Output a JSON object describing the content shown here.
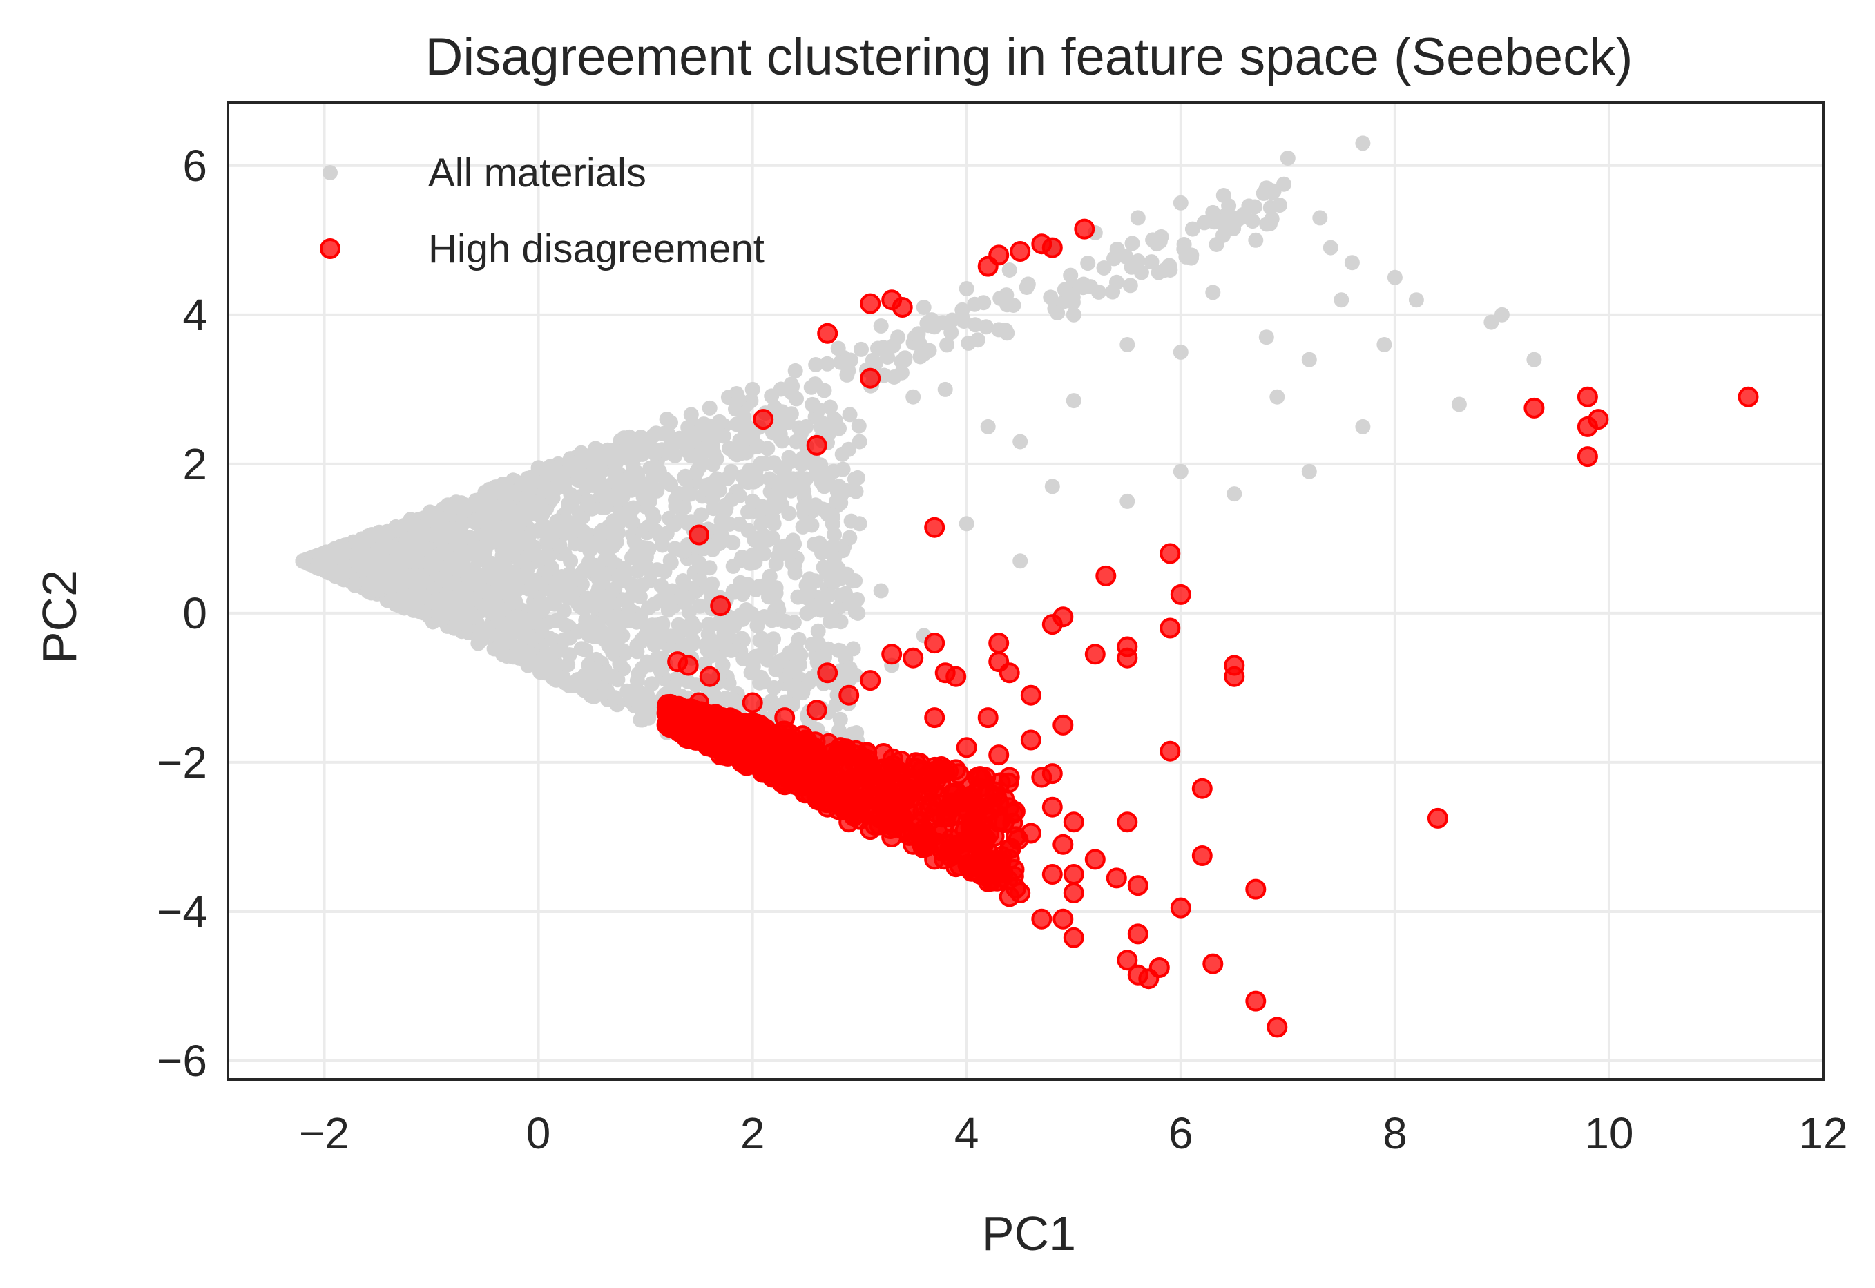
{
  "chart_data": {
    "type": "scatter",
    "title": "Disagreement clustering in feature space (Seebeck)",
    "xlabel": "PC1",
    "ylabel": "PC2",
    "xlim": [
      -2.9,
      12.0
    ],
    "ylim": [
      -6.25,
      6.85
    ],
    "xticks": [
      -2,
      0,
      2,
      4,
      6,
      8,
      10,
      12
    ],
    "xtick_labels": [
      "−2",
      "0",
      "2",
      "4",
      "6",
      "8",
      "10",
      "12"
    ],
    "yticks": [
      -6,
      -4,
      -2,
      0,
      2,
      4,
      6
    ],
    "ytick_labels": [
      "−6",
      "−4",
      "−2",
      "0",
      "2",
      "4",
      "6"
    ],
    "grid": true,
    "legend": "top-left",
    "series": [
      {
        "name": "All materials",
        "color": "#d3d3d3",
        "note": "dense wedge of points from apex (-2.2, 0.7) spreading right; upper edge rises to about (7, 5.8), lower edge descends to about (1.2, -1.6); sparse points scattered up to x about 9.3",
        "points": [
          [
            -2.2,
            0.7
          ],
          [
            -1.8,
            0.8
          ],
          [
            -1.5,
            0.85
          ],
          [
            -1.2,
            1.0
          ],
          [
            -0.9,
            1.2
          ],
          [
            -0.6,
            1.45
          ],
          [
            -0.3,
            1.7
          ],
          [
            0,
            1.95
          ],
          [
            0.4,
            2.15
          ],
          [
            0.8,
            2.35
          ],
          [
            1.2,
            2.6
          ],
          [
            1.6,
            2.75
          ],
          [
            2,
            3.0
          ],
          [
            2.4,
            3.25
          ],
          [
            2.8,
            3.55
          ],
          [
            3.2,
            3.85
          ],
          [
            3.6,
            4.1
          ],
          [
            4,
            4.35
          ],
          [
            4.4,
            4.6
          ],
          [
            4.8,
            4.9
          ],
          [
            5.2,
            5.1
          ],
          [
            5.6,
            5.3
          ],
          [
            6,
            5.5
          ],
          [
            6.4,
            5.6
          ],
          [
            6.8,
            5.7
          ],
          [
            7,
            6.1
          ],
          [
            7.7,
            6.3
          ],
          [
            -1.8,
            0.55
          ],
          [
            -1.4,
            0.35
          ],
          [
            -1.0,
            0.15
          ],
          [
            -0.6,
            -0.05
          ],
          [
            -0.2,
            -0.25
          ],
          [
            0.2,
            -0.5
          ],
          [
            0.6,
            -0.8
          ],
          [
            1.0,
            -1.2
          ],
          [
            1.2,
            -1.6
          ],
          [
            -1.2,
            0.7
          ],
          [
            -0.5,
            0.8
          ],
          [
            0.2,
            0.9
          ],
          [
            0.8,
            0.6
          ],
          [
            1.4,
            0.2
          ],
          [
            1.8,
            -0.5
          ],
          [
            2.2,
            -1.0
          ],
          [
            -0.8,
            0.4
          ],
          [
            0,
            0.4
          ],
          [
            0.6,
            0.1
          ],
          [
            1.0,
            -0.3
          ],
          [
            -0.2,
            1.0
          ],
          [
            0.5,
            1.4
          ],
          [
            1.0,
            1.7
          ],
          [
            1.4,
            1.2
          ],
          [
            2.0,
            1.5
          ],
          [
            2.5,
            1.8
          ],
          [
            3.0,
            2.3
          ],
          [
            3.5,
            2.9
          ],
          [
            4.2,
            2.5
          ],
          [
            4.5,
            2.3
          ],
          [
            5.0,
            2.85
          ],
          [
            2.3,
            0.9
          ],
          [
            2.8,
            0.6
          ],
          [
            3.2,
            0.3
          ],
          [
            3.6,
            -0.3
          ],
          [
            2.6,
            -0.4
          ],
          [
            3.0,
            1.2
          ],
          [
            4.0,
            1.2
          ],
          [
            4.5,
            0.7
          ],
          [
            5.5,
            1.5
          ],
          [
            6.0,
            1.9
          ],
          [
            6.5,
            1.6
          ],
          [
            4.8,
            1.7
          ],
          [
            3.8,
            3.0
          ],
          [
            4.3,
            3.8
          ],
          [
            5.0,
            4.0
          ],
          [
            5.5,
            3.6
          ],
          [
            6.0,
            3.5
          ],
          [
            6.3,
            4.3
          ],
          [
            6.8,
            3.7
          ],
          [
            7.2,
            3.4
          ],
          [
            7.5,
            4.2
          ],
          [
            7.6,
            4.7
          ],
          [
            8.0,
            4.5
          ],
          [
            8.2,
            4.2
          ],
          [
            8.6,
            2.8
          ],
          [
            8.9,
            3.9
          ],
          [
            9.0,
            4.0
          ],
          [
            9.3,
            3.4
          ],
          [
            7.2,
            1.9
          ],
          [
            7.7,
            2.5
          ],
          [
            7.9,
            3.6
          ],
          [
            6.9,
            2.9
          ],
          [
            6.7,
            5.0
          ],
          [
            7.3,
            5.3
          ],
          [
            7.4,
            4.9
          ],
          [
            5.9,
            4.6
          ],
          [
            6.1,
            4.8
          ],
          [
            2.5,
            2.5
          ],
          [
            1.8,
            1.9
          ],
          [
            2.2,
            1.2
          ],
          [
            1.5,
            0.9
          ],
          [
            1.1,
            1.1
          ],
          [
            0.7,
            0.9
          ],
          [
            0.3,
            0.7
          ],
          [
            -0.1,
            0.6
          ],
          [
            -0.5,
            0.5
          ],
          [
            -1.0,
            0.6
          ],
          [
            -1.6,
            0.7
          ],
          [
            0.5,
            -0.3
          ],
          [
            1.3,
            -0.9
          ],
          [
            1.7,
            -1.2
          ],
          [
            2.6,
            0.1
          ],
          [
            3.3,
            -0.7
          ],
          [
            2.9,
            -0.9
          ]
        ]
      },
      {
        "name": "High disagreement",
        "color": "#ff0000",
        "note": "dense cluster along lower wedge edge from about (1.2, -1.5) to (4.5, -3.8), plus scattered outliers",
        "points": [
          [
            1.2,
            -1.5
          ],
          [
            1.3,
            -1.4
          ],
          [
            1.4,
            -1.3
          ],
          [
            1.5,
            -1.7
          ],
          [
            1.6,
            -1.5
          ],
          [
            1.7,
            -1.9
          ],
          [
            1.8,
            -1.6
          ],
          [
            1.9,
            -2.0
          ],
          [
            2.0,
            -1.8
          ],
          [
            2.1,
            -2.1
          ],
          [
            2.2,
            -1.9
          ],
          [
            2.3,
            -2.3
          ],
          [
            2.4,
            -2.1
          ],
          [
            2.5,
            -2.4
          ],
          [
            2.6,
            -2.2
          ],
          [
            2.7,
            -2.6
          ],
          [
            2.8,
            -2.4
          ],
          [
            2.9,
            -2.8
          ],
          [
            3.0,
            -2.5
          ],
          [
            3.1,
            -2.9
          ],
          [
            3.2,
            -2.7
          ],
          [
            3.3,
            -3.0
          ],
          [
            3.4,
            -2.8
          ],
          [
            3.5,
            -3.1
          ],
          [
            3.6,
            -2.9
          ],
          [
            3.7,
            -3.3
          ],
          [
            3.8,
            -3.1
          ],
          [
            3.9,
            -3.4
          ],
          [
            4.0,
            -3.2
          ],
          [
            4.2,
            -3.6
          ],
          [
            4.4,
            -3.8
          ],
          [
            1.3,
            -0.65
          ],
          [
            1.4,
            -0.7
          ],
          [
            1.5,
            -1.2
          ],
          [
            1.6,
            -0.85
          ],
          [
            2.0,
            -1.2
          ],
          [
            2.3,
            -1.4
          ],
          [
            2.6,
            -1.3
          ],
          [
            2.7,
            -0.8
          ],
          [
            2.9,
            -1.1
          ],
          [
            3.1,
            -0.9
          ],
          [
            3.3,
            -0.55
          ],
          [
            3.5,
            -0.6
          ],
          [
            3.7,
            -0.4
          ],
          [
            3.8,
            -0.8
          ],
          [
            3.9,
            -0.85
          ],
          [
            4.3,
            -0.4
          ],
          [
            4.3,
            -0.65
          ],
          [
            4.4,
            -0.8
          ],
          [
            4.6,
            -1.1
          ],
          [
            4.8,
            -0.15
          ],
          [
            4.9,
            -0.05
          ],
          [
            5.2,
            -0.55
          ],
          [
            5.5,
            -0.45
          ],
          [
            5.5,
            -0.6
          ],
          [
            5.3,
            0.5
          ],
          [
            5.9,
            0.8
          ],
          [
            6.0,
            0.25
          ],
          [
            5.9,
            -0.2
          ],
          [
            6.5,
            -0.7
          ],
          [
            6.5,
            -0.85
          ],
          [
            4.9,
            -1.5
          ],
          [
            4.6,
            -1.7
          ],
          [
            4.3,
            -1.9
          ],
          [
            4.0,
            -1.8
          ],
          [
            3.7,
            -1.4
          ],
          [
            4.2,
            -1.4
          ],
          [
            4.7,
            -2.2
          ],
          [
            4.4,
            -2.2
          ],
          [
            4.8,
            -2.6
          ],
          [
            4.3,
            -2.8
          ],
          [
            4.6,
            -2.95
          ],
          [
            4.9,
            -3.1
          ],
          [
            4.4,
            -3.3
          ],
          [
            4.8,
            -3.5
          ],
          [
            4.5,
            -3.75
          ],
          [
            4.7,
            -4.1
          ],
          [
            4.9,
            -4.1
          ],
          [
            5.0,
            -4.35
          ],
          [
            5.0,
            -3.75
          ],
          [
            5.0,
            -3.5
          ],
          [
            5.2,
            -3.3
          ],
          [
            5.4,
            -3.55
          ],
          [
            5.0,
            -2.8
          ],
          [
            5.5,
            -2.8
          ],
          [
            5.9,
            -1.85
          ],
          [
            6.2,
            -2.35
          ],
          [
            6.2,
            -3.25
          ],
          [
            5.6,
            -3.65
          ],
          [
            5.6,
            -4.3
          ],
          [
            6.0,
            -3.95
          ],
          [
            5.5,
            -4.65
          ],
          [
            5.6,
            -4.85
          ],
          [
            5.7,
            -4.9
          ],
          [
            5.8,
            -4.75
          ],
          [
            6.3,
            -4.7
          ],
          [
            6.7,
            -3.7
          ],
          [
            6.7,
            -5.2
          ],
          [
            6.9,
            -5.55
          ],
          [
            4.8,
            -2.15
          ],
          [
            4.1,
            -2.2
          ],
          [
            8.4,
            -2.75
          ],
          [
            9.3,
            2.75
          ],
          [
            9.8,
            2.9
          ],
          [
            9.8,
            2.5
          ],
          [
            9.9,
            2.6
          ],
          [
            9.8,
            2.1
          ],
          [
            11.3,
            2.9
          ],
          [
            1.5,
            1.05
          ],
          [
            1.7,
            0.1
          ],
          [
            3.7,
            1.15
          ],
          [
            2.1,
            2.6
          ],
          [
            2.6,
            2.25
          ],
          [
            3.1,
            3.15
          ],
          [
            2.7,
            3.75
          ],
          [
            3.1,
            4.15
          ],
          [
            3.3,
            4.2
          ],
          [
            3.4,
            4.1
          ],
          [
            4.2,
            4.65
          ],
          [
            4.3,
            4.8
          ],
          [
            4.5,
            4.85
          ],
          [
            4.7,
            4.95
          ],
          [
            4.8,
            4.9
          ],
          [
            5.1,
            5.15
          ]
        ]
      }
    ]
  }
}
